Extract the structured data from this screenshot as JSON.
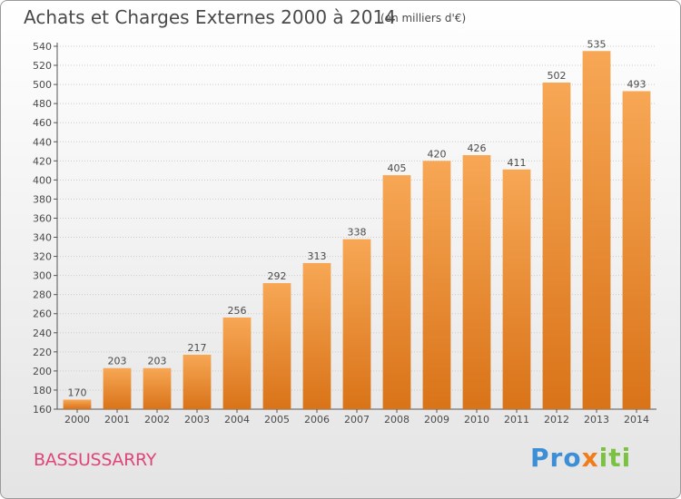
{
  "title": "Achats et Charges Externes 2000 à 2014",
  "subtitle": "(en milliers d'€)",
  "place": "BASSUSSARRY",
  "logo": {
    "parts": [
      "Pro",
      "x",
      "iti"
    ],
    "colors": [
      "#3c8fd6",
      "#f07d1a",
      "#7cc242"
    ]
  },
  "colors": {
    "bar_light": "#f7a755",
    "bar_dark": "#d97318",
    "text": "#4a4a4a",
    "grid": "#cccccc",
    "place": "#e0457a"
  },
  "chart_data": {
    "type": "bar",
    "categories": [
      "2000",
      "2001",
      "2002",
      "2003",
      "2004",
      "2005",
      "2006",
      "2007",
      "2008",
      "2009",
      "2010",
      "2011",
      "2012",
      "2013",
      "2014"
    ],
    "values": [
      170,
      203,
      203,
      217,
      256,
      292,
      313,
      338,
      405,
      420,
      426,
      411,
      502,
      535,
      493
    ],
    "title": "Achats et Charges Externes 2000 à 2014",
    "xlabel": "",
    "ylabel": "",
    "ylim": [
      160,
      540
    ],
    "yticks": [
      160,
      180,
      200,
      220,
      240,
      260,
      280,
      300,
      320,
      340,
      360,
      380,
      400,
      420,
      440,
      460,
      480,
      500,
      520,
      540
    ],
    "grid": true
  }
}
